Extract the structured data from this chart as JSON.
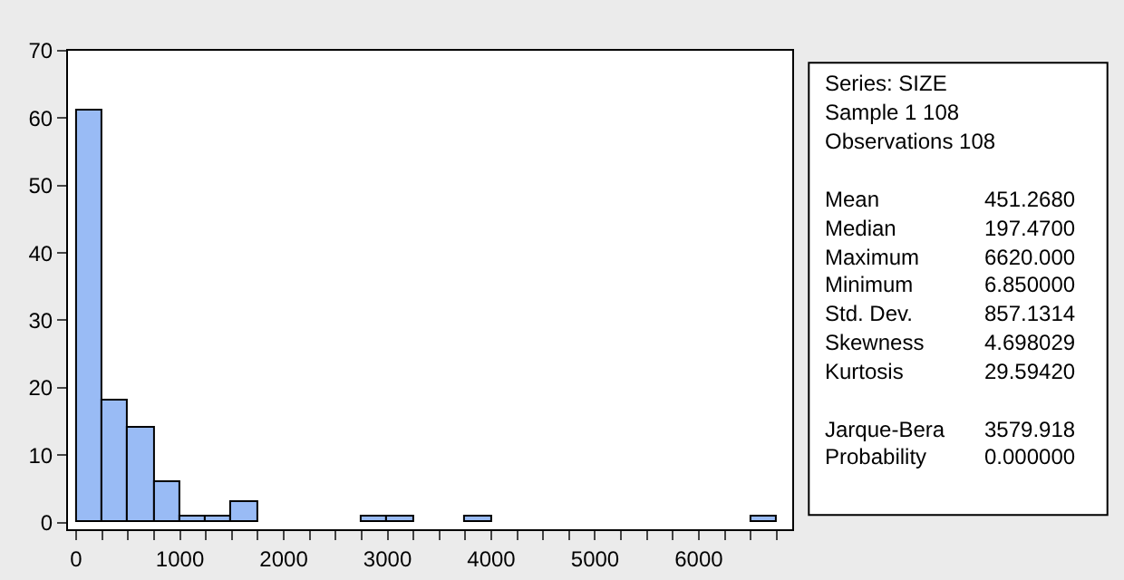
{
  "chart_data": [
    {
      "type": "histogram",
      "bins": [
        0,
        250,
        500,
        750,
        1000,
        1250,
        1500,
        1750,
        2000,
        2250,
        2500,
        2750,
        3000,
        3250,
        3500,
        3750,
        4000,
        4250,
        4500,
        4750,
        5000,
        5250,
        5500,
        5750,
        6000,
        6250,
        6500,
        6750
      ],
      "values": [
        61,
        18,
        14,
        6,
        1,
        1,
        3,
        0,
        0,
        0,
        0,
        1,
        1,
        0,
        0,
        1,
        0,
        0,
        0,
        0,
        0,
        0,
        0,
        0,
        0,
        0,
        1
      ],
      "color": "#99bbf5",
      "xlim": [
        -80,
        6900
      ],
      "ylim": [
        -1,
        70
      ],
      "xticks": [
        0,
        {
          "value": 250,
          "label": null
        },
        {
          "value": 500,
          "label": null
        },
        {
          "value": 750,
          "label": null
        },
        1000,
        {
          "value": 1250,
          "label": null
        },
        {
          "value": 1500,
          "label": null
        },
        {
          "value": 1750,
          "label": null
        },
        2000,
        {
          "value": 2250,
          "label": null
        },
        {
          "value": 2500,
          "label": null
        },
        {
          "value": 2750,
          "label": null
        },
        3000,
        {
          "value": 3250,
          "label": null
        },
        {
          "value": 3500,
          "label": null
        },
        {
          "value": 3750,
          "label": null
        },
        4000,
        {
          "value": 4250,
          "label": null
        },
        {
          "value": 4500,
          "label": null
        },
        {
          "value": 4750,
          "label": null
        },
        5000,
        {
          "value": 5250,
          "label": null
        },
        {
          "value": 5500,
          "label": null
        },
        {
          "value": 5750,
          "label": null
        },
        6000,
        {
          "value": 6250,
          "label": null
        },
        {
          "value": 6500,
          "label": null
        },
        {
          "value": 6750,
          "label": null
        }
      ],
      "yticks": [
        0,
        10,
        20,
        30,
        40,
        50,
        60,
        70
      ]
    },
    {
      "type": "other",
      "annotations": [
        "Series: SIZE",
        "Sample 1 108",
        "Observations 108",
        "Mean",
        "451.2680",
        "Median",
        "197.4700",
        "Maximum",
        "6620.000",
        "Minimum",
        "6.850000",
        "Std. Dev.",
        "857.1314",
        "Skewness",
        "4.698029",
        "Kurtosis",
        "29.59420",
        "Jarque-Bera",
        "3579.918",
        "Probability",
        "0.000000"
      ]
    }
  ]
}
